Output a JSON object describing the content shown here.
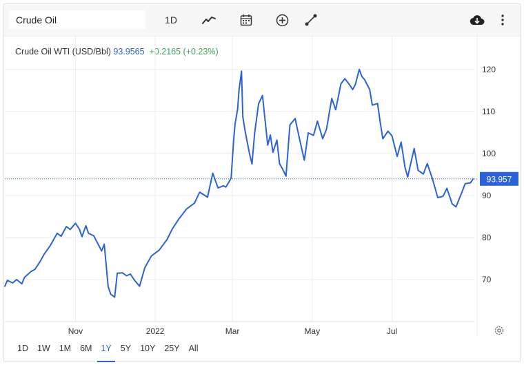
{
  "toolbar": {
    "search_value": "Crude Oil",
    "interval_label": "1D",
    "icons": [
      "line-chart-icon",
      "calendar-icon",
      "add-circle-icon",
      "draw-line-icon",
      "download-cloud-icon",
      "more-vertical-icon"
    ]
  },
  "info": {
    "name": "Crude Oil WTI (USD/Bbl)",
    "price": "93.9565",
    "change": "+0.2165 (+0.23%)"
  },
  "range_buttons": [
    "1D",
    "1W",
    "1M",
    "6M",
    "1Y",
    "5Y",
    "10Y",
    "25Y",
    "All"
  ],
  "active_range": "1Y",
  "colors": {
    "line": "#2962d9",
    "change_positive": "#3aa655",
    "grid": "#ececec"
  },
  "chart_data": {
    "type": "line",
    "title": "Crude Oil WTI (USD/Bbl)",
    "xlabel": "",
    "ylabel": "",
    "x_range": [
      "2021-09-08",
      "2022-09-02"
    ],
    "ylim": [
      60,
      128
    ],
    "y_ticks": [
      70,
      80,
      90,
      100,
      110,
      120
    ],
    "x_ticks": [
      {
        "label": "Nov",
        "x": "2021-11-01"
      },
      {
        "label": "2022",
        "x": "2022-01-01"
      },
      {
        "label": "Mar",
        "x": "2022-03-01"
      },
      {
        "label": "May",
        "x": "2022-05-01"
      },
      {
        "label": "Jul",
        "x": "2022-07-01"
      }
    ],
    "last_value_label": "93.957",
    "last_value": 93.957,
    "grid": true,
    "series": [
      {
        "name": "Crude Oil WTI",
        "x": [
          "2021-09-08",
          "2021-09-10",
          "2021-09-14",
          "2021-09-17",
          "2021-09-21",
          "2021-09-23",
          "2021-09-28",
          "2021-10-01",
          "2021-10-05",
          "2021-10-08",
          "2021-10-13",
          "2021-10-18",
          "2021-10-21",
          "2021-10-25",
          "2021-10-28",
          "2021-11-01",
          "2021-11-04",
          "2021-11-06",
          "2021-11-09",
          "2021-11-11",
          "2021-11-15",
          "2021-11-17",
          "2021-11-21",
          "2021-11-23",
          "2021-11-26",
          "2021-11-28",
          "2021-12-01",
          "2021-12-03",
          "2021-12-07",
          "2021-12-10",
          "2021-12-13",
          "2021-12-16",
          "2021-12-20",
          "2021-12-24",
          "2021-12-29",
          "2022-01-04",
          "2022-01-10",
          "2022-01-14",
          "2022-01-19",
          "2022-01-25",
          "2022-01-31",
          "2022-02-04",
          "2022-02-10",
          "2022-02-14",
          "2022-02-18",
          "2022-02-22",
          "2022-02-24",
          "2022-02-28",
          "2022-03-02",
          "2022-03-03",
          "2022-03-05",
          "2022-03-06",
          "2022-03-08",
          "2022-03-09",
          "2022-03-11",
          "2022-03-14",
          "2022-03-16",
          "2022-03-18",
          "2022-03-21",
          "2022-03-24",
          "2022-03-28",
          "2022-03-30",
          "2022-04-01",
          "2022-04-04",
          "2022-04-06",
          "2022-04-08",
          "2022-04-11",
          "2022-04-14",
          "2022-04-18",
          "2022-04-21",
          "2022-04-25",
          "2022-04-28",
          "2022-05-02",
          "2022-05-05",
          "2022-05-09",
          "2022-05-12",
          "2022-05-16",
          "2022-05-19",
          "2022-05-23",
          "2022-05-26",
          "2022-05-29",
          "2022-06-01",
          "2022-06-03",
          "2022-06-06",
          "2022-06-08",
          "2022-06-10",
          "2022-06-14",
          "2022-06-16",
          "2022-06-20",
          "2022-06-22",
          "2022-06-24",
          "2022-06-28",
          "2022-07-01",
          "2022-07-05",
          "2022-07-08",
          "2022-07-11",
          "2022-07-13",
          "2022-07-18",
          "2022-07-21",
          "2022-07-25",
          "2022-07-28",
          "2022-08-01",
          "2022-08-05",
          "2022-08-09",
          "2022-08-12",
          "2022-08-16",
          "2022-08-19",
          "2022-08-23",
          "2022-08-26",
          "2022-08-30",
          "2022-09-01"
        ],
        "values": [
          68.4,
          69.8,
          69.2,
          70.0,
          69.0,
          70.5,
          71.9,
          72.4,
          74.3,
          76.0,
          78.2,
          81.0,
          80.3,
          82.6,
          81.9,
          83.4,
          82.0,
          80.2,
          82.8,
          81.0,
          80.4,
          79.2,
          76.8,
          78.4,
          68.3,
          66.5,
          65.8,
          71.5,
          71.6,
          70.9,
          71.3,
          69.9,
          68.4,
          72.8,
          75.6,
          77.0,
          79.5,
          82.0,
          84.4,
          86.8,
          88.2,
          90.8,
          89.6,
          95.3,
          91.8,
          92.3,
          92.0,
          94.1,
          103.4,
          107.0,
          110.6,
          115.0,
          119.6,
          108.7,
          104.9,
          100.1,
          97.5,
          104.8,
          111.8,
          113.8,
          102.0,
          104.4,
          100.3,
          103.2,
          97.6,
          96.5,
          94.6,
          106.8,
          108.3,
          103.9,
          98.4,
          104.9,
          104.3,
          107.7,
          103.5,
          105.8,
          113.1,
          110.4,
          116.6,
          117.8,
          116.6,
          115.2,
          116.4,
          120.0,
          118.3,
          117.6,
          115.2,
          111.5,
          111.9,
          107.5,
          103.5,
          105.3,
          104.2,
          99.3,
          102.7,
          96.6,
          94.4,
          101.2,
          96.0,
          95.1,
          97.6,
          93.9,
          89.5,
          89.8,
          91.7,
          88.0,
          87.3,
          90.4,
          92.8,
          93.0,
          93.957
        ]
      }
    ]
  }
}
